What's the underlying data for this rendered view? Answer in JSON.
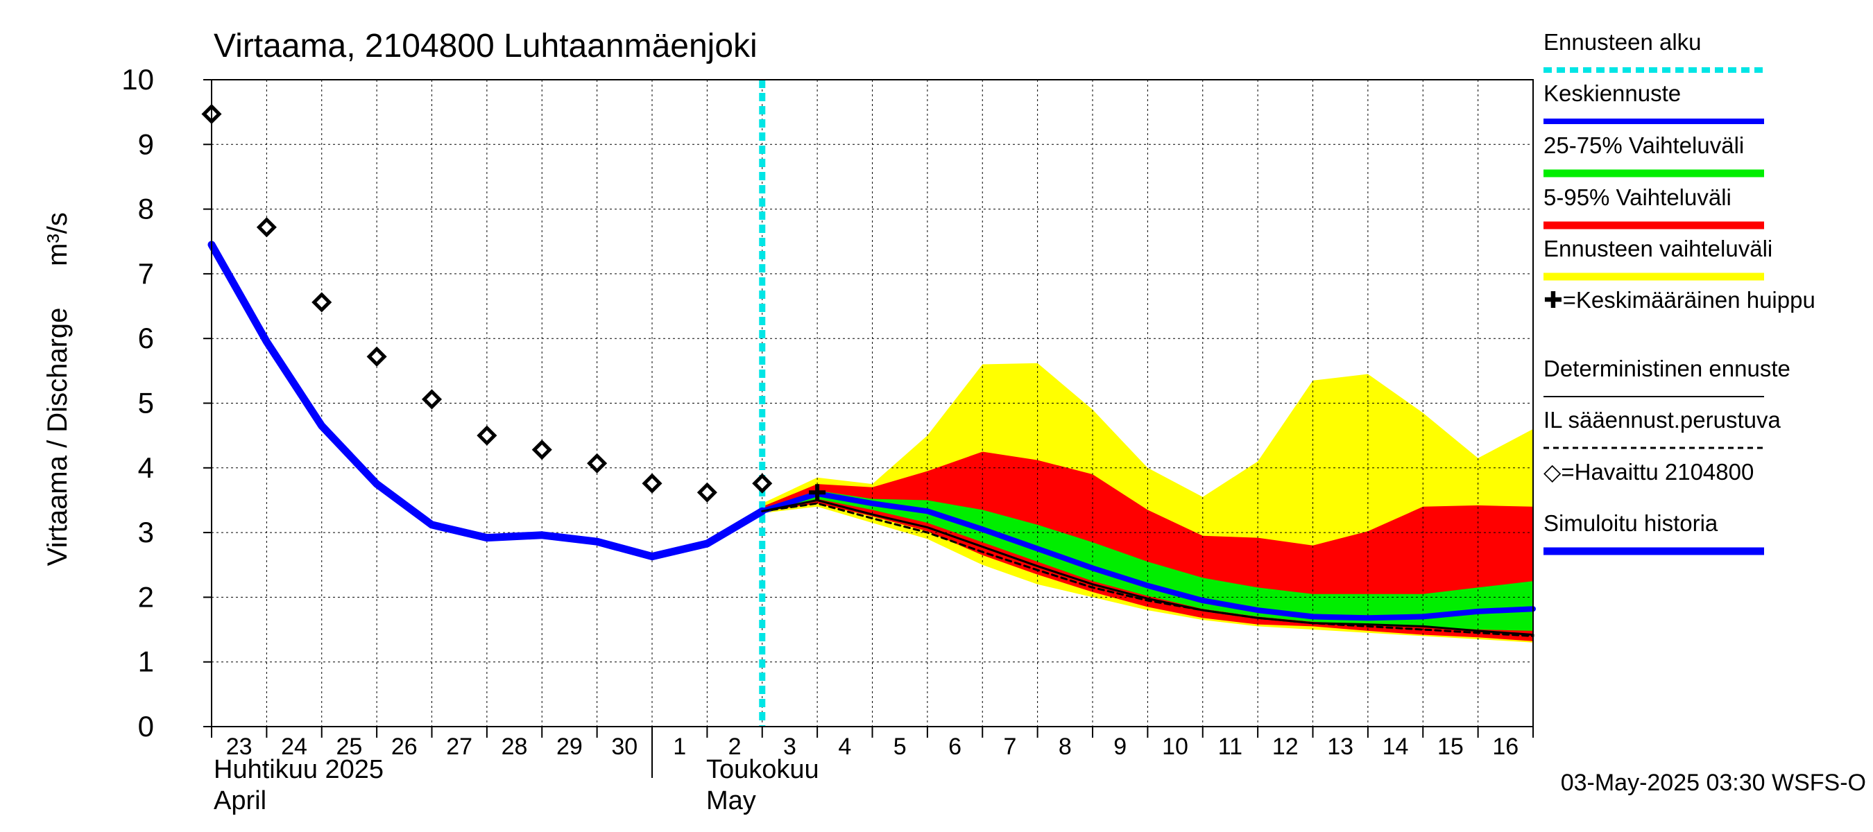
{
  "chart_data": {
    "type": "area",
    "title": "Virtaama, 2104800 Luhtaanmäenjoki",
    "ylabel": "Virtaama / Discharge",
    "yunit": "m³/s",
    "ylim": [
      0,
      10
    ],
    "yticks": [
      "0",
      "1",
      "2",
      "3",
      "4",
      "5",
      "6",
      "7",
      "8",
      "9",
      "10"
    ],
    "x_range": [
      "2025-04-23",
      "2025-05-17"
    ],
    "x_ticks": [
      "23",
      "24",
      "25",
      "26",
      "27",
      "28",
      "29",
      "30",
      "1",
      "2",
      "3",
      "4",
      "5",
      "6",
      "7",
      "8",
      "9",
      "10",
      "11",
      "12",
      "13",
      "14",
      "15",
      "16"
    ],
    "month_labels": [
      {
        "line1": "Huhtikuu  2025",
        "line2": "April"
      },
      {
        "line1": "Toukokuu",
        "line2": "May"
      }
    ],
    "forecast_start": "2025-05-03",
    "grid": true,
    "legend_position": "right",
    "legend": [
      {
        "label": "Ennusteen alku",
        "color": "#00e5e5",
        "style": "dotted"
      },
      {
        "label": "Keskiennuste",
        "color": "#0000ff",
        "style": "solid"
      },
      {
        "label": "25-75% Vaihteluväli",
        "color": "#00ee00",
        "style": "thick"
      },
      {
        "label": "5-95% Vaihteluväli",
        "color": "#ff0000",
        "style": "thick"
      },
      {
        "label": "Ennusteen vaihteluväli",
        "color": "#ffff00",
        "style": "thick"
      },
      {
        "label": "✚=Keskimääräinen huippu",
        "color": "#000000",
        "style": "marker"
      },
      {
        "label": "Deterministinen ennuste",
        "color": "#000000",
        "style": "solid"
      },
      {
        "label": "IL sääennust.perustuva",
        "color": "#000000",
        "style": "dashed"
      },
      {
        "label": "◇=Havaittu 2104800",
        "color": "#000000",
        "style": "marker"
      },
      {
        "label": "Simuloitu historia",
        "color": "#0000ff",
        "style": "thick"
      }
    ],
    "footer": "03-May-2025 03:30 WSFS-O",
    "series": [
      {
        "name": "Simuloitu historia",
        "x": [
          "2025-04-23",
          "2025-04-24",
          "2025-04-25",
          "2025-04-26",
          "2025-04-27",
          "2025-04-28",
          "2025-04-29",
          "2025-04-30",
          "2025-05-01",
          "2025-05-02",
          "2025-05-03"
        ],
        "values": [
          7.45,
          5.95,
          4.65,
          3.75,
          3.12,
          2.92,
          2.96,
          2.86,
          2.63,
          2.83,
          3.33
        ]
      },
      {
        "name": "Havaittu 2104800",
        "x": [
          "2025-04-23",
          "2025-04-24",
          "2025-04-25",
          "2025-04-26",
          "2025-04-27",
          "2025-04-28",
          "2025-04-29",
          "2025-04-30",
          "2025-05-01",
          "2025-05-02",
          "2025-05-03"
        ],
        "values": [
          9.47,
          7.72,
          6.56,
          5.72,
          5.06,
          4.5,
          4.28,
          4.07,
          3.76,
          3.62,
          3.76
        ]
      },
      {
        "name": "Keskiennuste",
        "x": [
          "2025-05-03",
          "2025-05-04",
          "2025-05-05",
          "2025-05-06",
          "2025-05-07",
          "2025-05-08",
          "2025-05-09",
          "2025-05-10",
          "2025-05-11",
          "2025-05-12",
          "2025-05-13",
          "2025-05-14",
          "2025-05-15",
          "2025-05-16",
          "2025-05-17"
        ],
        "values": [
          3.33,
          3.6,
          3.45,
          3.33,
          3.05,
          2.75,
          2.45,
          2.18,
          1.95,
          1.8,
          1.7,
          1.68,
          1.7,
          1.78,
          1.82
        ]
      },
      {
        "name": "Deterministinen ennuste",
        "x": [
          "2025-05-03",
          "2025-05-04",
          "2025-05-05",
          "2025-05-06",
          "2025-05-07",
          "2025-05-08",
          "2025-05-09",
          "2025-05-10",
          "2025-05-11",
          "2025-05-12",
          "2025-05-13",
          "2025-05-14",
          "2025-05-15",
          "2025-05-16",
          "2025-05-17"
        ],
        "values": [
          3.33,
          3.5,
          3.28,
          3.08,
          2.78,
          2.48,
          2.2,
          1.98,
          1.8,
          1.68,
          1.6,
          1.58,
          1.55,
          1.48,
          1.42
        ]
      },
      {
        "name": "IL sääennust.perustuva",
        "x": [
          "2025-05-03",
          "2025-05-04",
          "2025-05-05",
          "2025-05-06",
          "2025-05-07",
          "2025-05-08",
          "2025-05-09",
          "2025-05-10",
          "2025-05-11",
          "2025-05-12",
          "2025-05-13",
          "2025-05-14",
          "2025-05-15",
          "2025-05-16",
          "2025-05-17"
        ],
        "values": [
          3.33,
          3.45,
          3.22,
          3.0,
          2.7,
          2.42,
          2.15,
          1.95,
          1.8,
          1.68,
          1.6,
          1.55,
          1.5,
          1.45,
          1.4
        ]
      }
    ],
    "bands": [
      {
        "name": "Ennusteen vaihteluväli",
        "x": [
          "2025-05-03",
          "2025-05-04",
          "2025-05-05",
          "2025-05-06",
          "2025-05-07",
          "2025-05-08",
          "2025-05-09",
          "2025-05-10",
          "2025-05-11",
          "2025-05-12",
          "2025-05-13",
          "2025-05-14",
          "2025-05-15",
          "2025-05-16",
          "2025-05-17"
        ],
        "low": [
          3.3,
          3.4,
          3.15,
          2.9,
          2.5,
          2.2,
          2.0,
          1.8,
          1.65,
          1.55,
          1.5,
          1.45,
          1.4,
          1.35,
          1.3
        ],
        "high": [
          3.45,
          3.85,
          3.75,
          4.5,
          5.6,
          5.62,
          4.9,
          4.0,
          3.55,
          4.1,
          5.35,
          5.45,
          4.85,
          4.15,
          4.6
        ]
      },
      {
        "name": "5-95% Vaihteluväli",
        "x": [
          "2025-05-03",
          "2025-05-04",
          "2025-05-05",
          "2025-05-06",
          "2025-05-07",
          "2025-05-08",
          "2025-05-09",
          "2025-05-10",
          "2025-05-11",
          "2025-05-12",
          "2025-05-13",
          "2025-05-14",
          "2025-05-15",
          "2025-05-16",
          "2025-05-17"
        ],
        "low": [
          3.32,
          3.45,
          3.25,
          3.02,
          2.65,
          2.35,
          2.08,
          1.85,
          1.68,
          1.58,
          1.55,
          1.48,
          1.42,
          1.38,
          1.32
        ],
        "high": [
          3.4,
          3.75,
          3.7,
          3.95,
          4.25,
          4.12,
          3.9,
          3.35,
          2.95,
          2.92,
          2.8,
          3.02,
          3.4,
          3.42,
          3.4
        ]
      },
      {
        "name": "25-75% Vaihteluväli",
        "x": [
          "2025-05-03",
          "2025-05-04",
          "2025-05-05",
          "2025-05-06",
          "2025-05-07",
          "2025-05-08",
          "2025-05-09",
          "2025-05-10",
          "2025-05-11",
          "2025-05-12",
          "2025-05-13",
          "2025-05-14",
          "2025-05-15",
          "2025-05-16",
          "2025-05-17"
        ],
        "low": [
          3.33,
          3.52,
          3.35,
          3.15,
          2.85,
          2.55,
          2.25,
          2.02,
          1.82,
          1.7,
          1.62,
          1.58,
          1.55,
          1.5,
          1.48
        ],
        "high": [
          3.36,
          3.65,
          3.52,
          3.5,
          3.35,
          3.12,
          2.85,
          2.55,
          2.3,
          2.15,
          2.05,
          2.05,
          2.05,
          2.15,
          2.25
        ]
      }
    ],
    "mean_peak": {
      "x": "2025-05-04",
      "value": 3.62
    }
  }
}
